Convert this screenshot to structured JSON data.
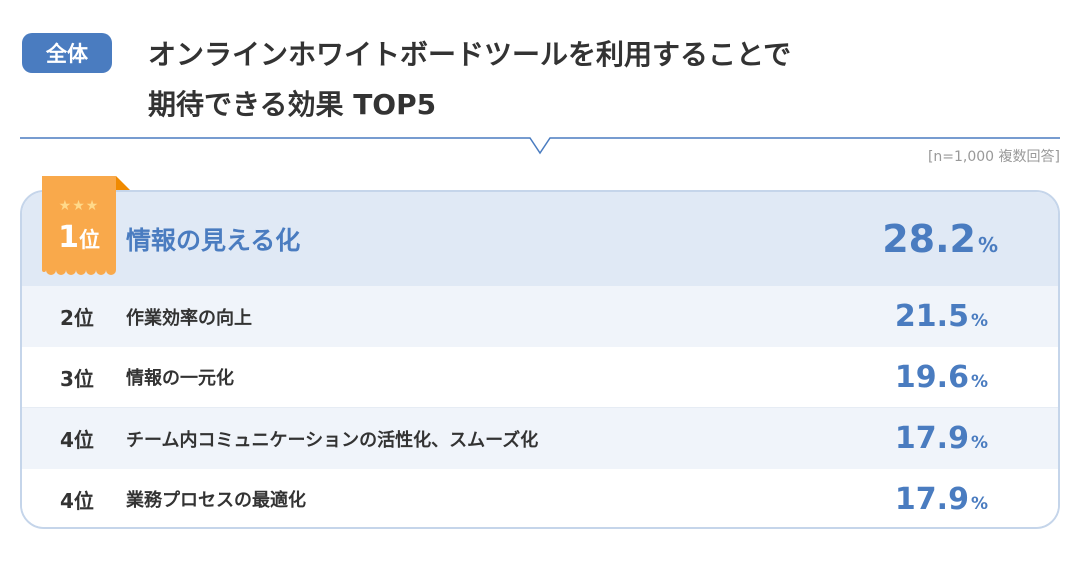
{
  "header": {
    "badge": "全体",
    "title_line1": "オンラインホワイトボードツールを利用することで",
    "title_line2": "期待できる効果 TOP5",
    "note": "[n=1,000 複数回答]"
  },
  "colors": {
    "accent": "#4a7cc0",
    "ribbon": "#f9a94b",
    "top_row_bg": "#e0e9f5",
    "alt_row_bg": "#f0f4fa"
  },
  "chart_data": {
    "type": "table",
    "unit": "%",
    "rows": [
      {
        "rank_num": "1",
        "rank_suffix": "位",
        "rank": "1位",
        "label": "情報の見える化",
        "value": "28.2"
      },
      {
        "rank": "2位",
        "label": "作業効率の向上",
        "value": "21.5"
      },
      {
        "rank": "3位",
        "label": "情報の一元化",
        "value": "19.6"
      },
      {
        "rank": "4位",
        "label": "チーム内コミュニケーションの活性化、スムーズ化",
        "value": "17.9"
      },
      {
        "rank": "4位",
        "label": "業務プロセスの最適化",
        "value": "17.9"
      }
    ]
  }
}
